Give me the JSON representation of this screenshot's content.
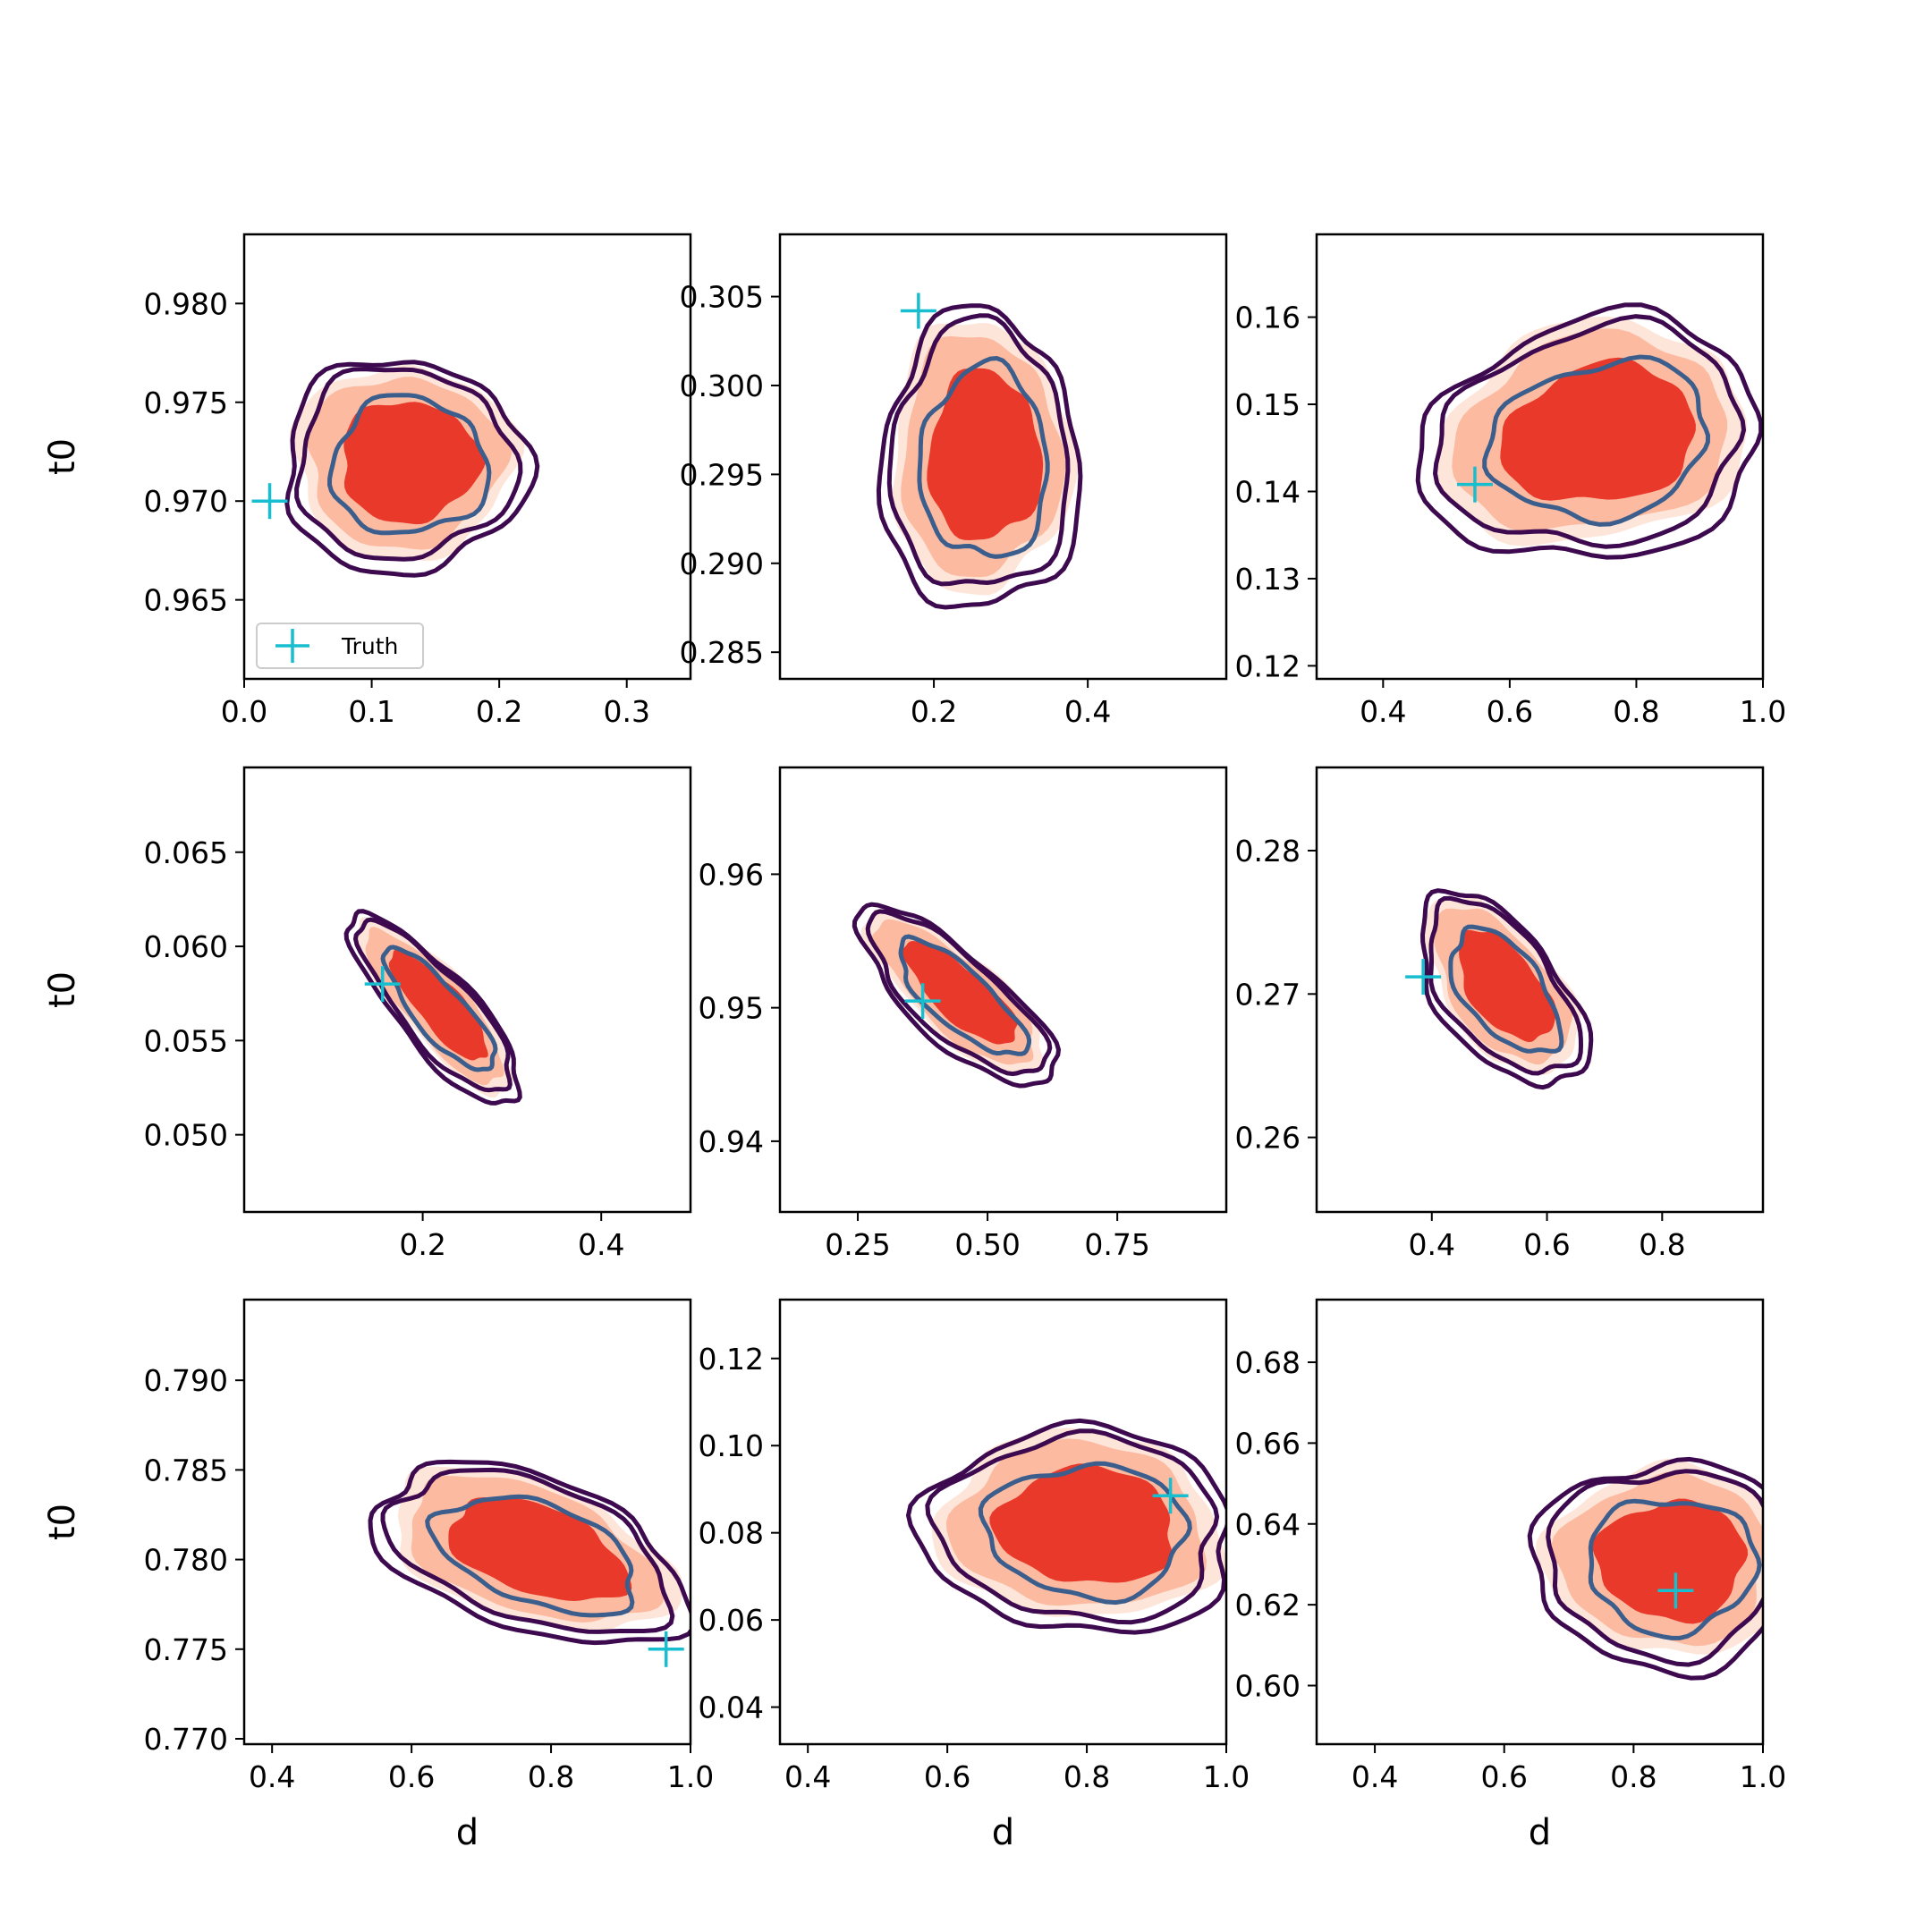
{
  "figure": {
    "xlabel": "d",
    "ylabel": "t0",
    "legend_label": "Truth"
  },
  "colors": {
    "fill_outer": "#fee5d9",
    "fill_mid": "#fcbba1",
    "fill_inner": "#e8392a",
    "contour_outer": "#3d0a4f",
    "contour_inner": "#3b5e8c",
    "truth": "#17becf"
  },
  "chart_data": [
    {
      "type": "contour",
      "xlim": [
        0.0,
        0.35
      ],
      "ylim": [
        0.961,
        0.9835
      ],
      "xticks": [
        0.0,
        0.1,
        0.2,
        0.3
      ],
      "xtick_labels": [
        "0.0",
        "0.1",
        "0.2",
        "0.3"
      ],
      "yticks": [
        0.965,
        0.97,
        0.975,
        0.98
      ],
      "ytick_labels": [
        "0.965",
        "0.970",
        "0.975",
        "0.980"
      ],
      "truth": [
        0.02,
        0.97
      ],
      "center": [
        0.125,
        0.972
      ],
      "spread": [
        0.085,
        0.0048
      ],
      "tilt": 0.0,
      "xlabel": "",
      "ylabel": "t0",
      "legend": "lower left"
    },
    {
      "type": "contour",
      "xlim": [
        0.0,
        0.58
      ],
      "ylim": [
        0.2835,
        0.3085
      ],
      "xticks": [
        0.2,
        0.4
      ],
      "xtick_labels": [
        "0.2",
        "0.4"
      ],
      "yticks": [
        0.285,
        0.29,
        0.295,
        0.3,
        0.305
      ],
      "ytick_labels": [
        "0.285",
        "0.290",
        "0.295",
        "0.300",
        "0.305"
      ],
      "truth": [
        0.18,
        0.3042
      ],
      "center": [
        0.26,
        0.296
      ],
      "spread": [
        0.115,
        0.0075
      ],
      "tilt": 0.0
    },
    {
      "type": "contour",
      "xlim": [
        0.295,
        1.0
      ],
      "ylim": [
        0.1185,
        0.1695
      ],
      "xticks": [
        0.4,
        0.6,
        0.8,
        1.0
      ],
      "xtick_labels": [
        "0.4",
        "0.6",
        "0.8",
        "1.0"
      ],
      "yticks": [
        0.12,
        0.13,
        0.14,
        0.15,
        0.16
      ],
      "ytick_labels": [
        "0.12",
        "0.13",
        "0.14",
        "0.15",
        "0.16"
      ],
      "truth": [
        0.545,
        0.1408
      ],
      "center": [
        0.73,
        0.1465
      ],
      "spread": [
        0.24,
        0.0125
      ],
      "tilt": 0.15
    },
    {
      "type": "contour",
      "xlim": [
        0.0,
        0.5
      ],
      "ylim": [
        0.0459,
        0.0695
      ],
      "xticks": [
        0.2,
        0.4
      ],
      "xtick_labels": [
        "0.2",
        "0.4"
      ],
      "yticks": [
        0.05,
        0.055,
        0.06,
        0.065
      ],
      "ytick_labels": [
        "0.050",
        "0.055",
        "0.060",
        "0.065"
      ],
      "truth": [
        0.155,
        0.058
      ],
      "center": [
        0.215,
        0.0568
      ],
      "spread": [
        0.085,
        0.0045
      ],
      "tilt": -0.82,
      "ylabel": "t0"
    },
    {
      "type": "contour",
      "xlim": [
        0.1,
        0.96
      ],
      "ylim": [
        0.9347,
        0.968
      ],
      "xticks": [
        0.25,
        0.5,
        0.75
      ],
      "xtick_labels": [
        "0.25",
        "0.50",
        "0.75"
      ],
      "yticks": [
        0.94,
        0.95,
        0.96
      ],
      "ytick_labels": [
        "0.94",
        "0.95",
        "0.96"
      ],
      "truth": [
        0.375,
        0.9505
      ],
      "center": [
        0.44,
        0.951
      ],
      "spread": [
        0.17,
        0.006
      ],
      "tilt": -0.78
    },
    {
      "type": "contour",
      "xlim": [
        0.2,
        0.975
      ],
      "ylim": [
        0.2548,
        0.2858
      ],
      "xticks": [
        0.4,
        0.6,
        0.8
      ],
      "xtick_labels": [
        "0.4",
        "0.6",
        "0.8"
      ],
      "yticks": [
        0.26,
        0.27,
        0.28
      ],
      "ytick_labels": [
        "0.26",
        "0.27",
        "0.28"
      ],
      "truth": [
        0.385,
        0.2712
      ],
      "center": [
        0.52,
        0.2705
      ],
      "spread": [
        0.13,
        0.006
      ],
      "tilt": -0.55
    },
    {
      "type": "contour",
      "xlim": [
        0.36,
        1.0
      ],
      "ylim": [
        0.7697,
        0.7945
      ],
      "xticks": [
        0.4,
        0.6,
        0.8,
        1.0
      ],
      "xtick_labels": [
        "0.4",
        "0.6",
        "0.8",
        "1.0"
      ],
      "yticks": [
        0.77,
        0.775,
        0.78,
        0.785,
        0.79
      ],
      "ytick_labels": [
        "0.770",
        "0.775",
        "0.780",
        "0.785",
        "0.790"
      ],
      "truth": [
        0.965,
        0.775
      ],
      "center": [
        0.77,
        0.7805
      ],
      "spread": [
        0.2,
        0.0045
      ],
      "tilt": -0.45,
      "xlabel": "d",
      "ylabel": "t0"
    },
    {
      "type": "contour",
      "xlim": [
        0.36,
        1.0
      ],
      "ylim": [
        0.0315,
        0.1335
      ],
      "xticks": [
        0.4,
        0.6,
        0.8,
        1.0
      ],
      "xtick_labels": [
        "0.4",
        "0.6",
        "0.8",
        "1.0"
      ],
      "yticks": [
        0.04,
        0.06,
        0.08,
        0.1,
        0.12
      ],
      "ytick_labels": [
        "0.04",
        "0.06",
        "0.08",
        "0.10",
        "0.12"
      ],
      "truth": [
        0.92,
        0.0885
      ],
      "center": [
        0.79,
        0.0815
      ],
      "spread": [
        0.2,
        0.021
      ],
      "tilt": -0.05,
      "xlabel": "d"
    },
    {
      "type": "contour",
      "xlim": [
        0.31,
        1.0
      ],
      "ylim": [
        0.5855,
        0.6955
      ],
      "xticks": [
        0.4,
        0.6,
        0.8,
        1.0
      ],
      "xtick_labels": [
        "0.4",
        "0.6",
        "0.8",
        "1.0"
      ],
      "yticks": [
        0.6,
        0.62,
        0.64,
        0.66,
        0.68
      ],
      "ytick_labels": [
        "0.60",
        "0.62",
        "0.64",
        "0.66",
        "0.68"
      ],
      "truth": [
        0.865,
        0.6235
      ],
      "center": [
        0.85,
        0.631
      ],
      "spread": [
        0.18,
        0.023
      ],
      "tilt": 0.0,
      "xlabel": "d"
    }
  ]
}
